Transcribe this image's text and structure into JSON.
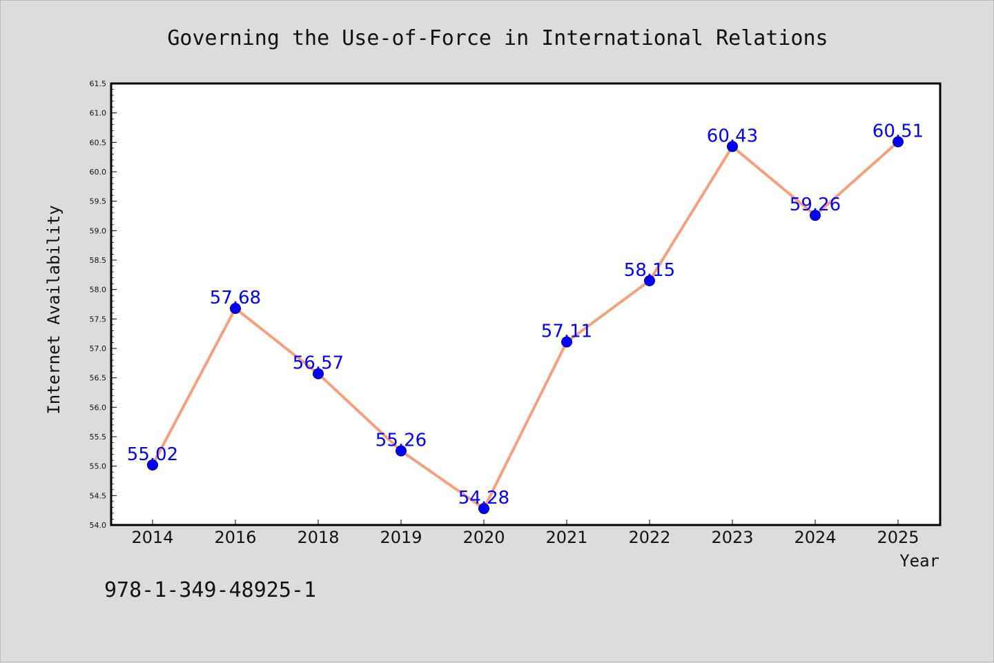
{
  "chart_data": {
    "type": "line",
    "title": "Governing the Use-of-Force in International Relations",
    "xlabel": "Year",
    "ylabel": "Internet Availability",
    "categories": [
      "2014",
      "2016",
      "2018",
      "2019",
      "2020",
      "2021",
      "2022",
      "2023",
      "2024",
      "2025"
    ],
    "series": [
      {
        "values": [
          55.02,
          57.68,
          56.57,
          55.26,
          54.28,
          57.11,
          58.15,
          60.43,
          59.26,
          60.51
        ],
        "data_labels": [
          "55.02",
          "57.68",
          "56.57",
          "55.26",
          "54.28",
          "57.11",
          "58.15",
          "60.43",
          "59.26",
          "60.51"
        ],
        "line_color": "#f5a07a",
        "marker_color": "#0000ff"
      }
    ],
    "ylim": [
      54.0,
      61.5
    ],
    "yticks": [
      "54.0",
      "54.5",
      "55.0",
      "55.5",
      "56.0",
      "56.5",
      "57.0",
      "57.5",
      "58.0",
      "58.5",
      "59.0",
      "59.5",
      "60.0",
      "60.5",
      "61.0",
      "61.5"
    ],
    "grid": false,
    "legend": "none"
  },
  "footer_text": "978-1-349-48925-1",
  "colors": {
    "background": "#dcdcdc",
    "plot_area": "#ffffff",
    "line": "#f5a07a",
    "marker": "#0000ff",
    "data_label": "#0000ff"
  }
}
